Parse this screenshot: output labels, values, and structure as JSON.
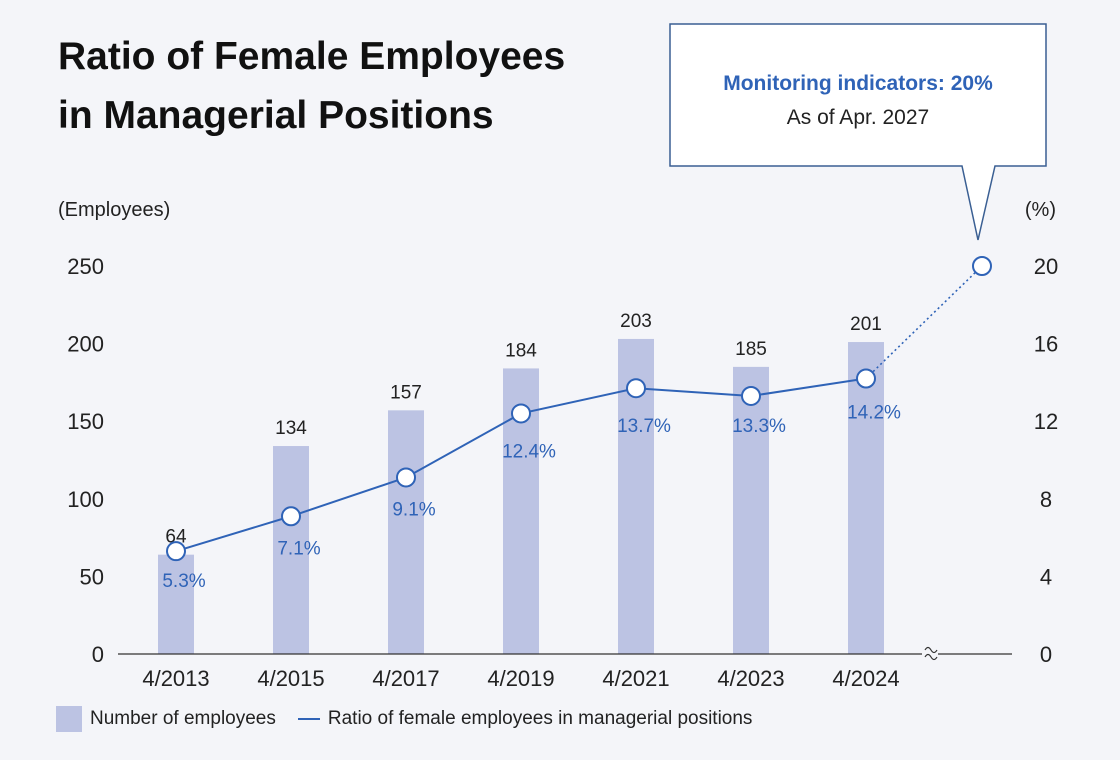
{
  "chart_data": {
    "type": "bar",
    "title_lines": [
      "Ratio of Female Employees",
      "in Managerial Positions"
    ],
    "left_axis_label": "(Employees)",
    "right_axis_label": "(%)",
    "categories": [
      "4/2013",
      "4/2015",
      "4/2017",
      "4/2019",
      "4/2021",
      "4/2023",
      "4/2024"
    ],
    "left_ticks": [
      "0",
      "50",
      "100",
      "150",
      "200",
      "250"
    ],
    "right_ticks": [
      "0",
      "4",
      "8",
      "12",
      "16",
      "20"
    ],
    "ylim_left": [
      0,
      250
    ],
    "ylim_right": [
      0,
      20
    ],
    "series": [
      {
        "name": "Number of employees",
        "type": "bar",
        "axis": "left",
        "values": [
          64,
          134,
          157,
          184,
          203,
          185,
          201
        ],
        "labels": [
          "64",
          "134",
          "157",
          "184",
          "203",
          "185",
          "201"
        ],
        "color": "#bcc3e3"
      },
      {
        "name": "Ratio of female employees in managerial positions",
        "type": "line",
        "axis": "right",
        "values": [
          5.3,
          7.1,
          9.1,
          12.4,
          13.7,
          13.3,
          14.2
        ],
        "labels": [
          "5.3%",
          "7.1%",
          "9.1%",
          "12.4%",
          "13.7%",
          "13.3%",
          "14.2%"
        ],
        "color": "#2f63b7"
      }
    ],
    "target": {
      "value": 20,
      "callout_title": "Monitoring indicators: 20%",
      "callout_sub": "As of Apr. 2027"
    },
    "axis_break": true,
    "legend": [
      {
        "label": "Number of employees",
        "kind": "bar"
      },
      {
        "label": "Ratio of female employees in managerial positions",
        "kind": "line"
      }
    ]
  }
}
